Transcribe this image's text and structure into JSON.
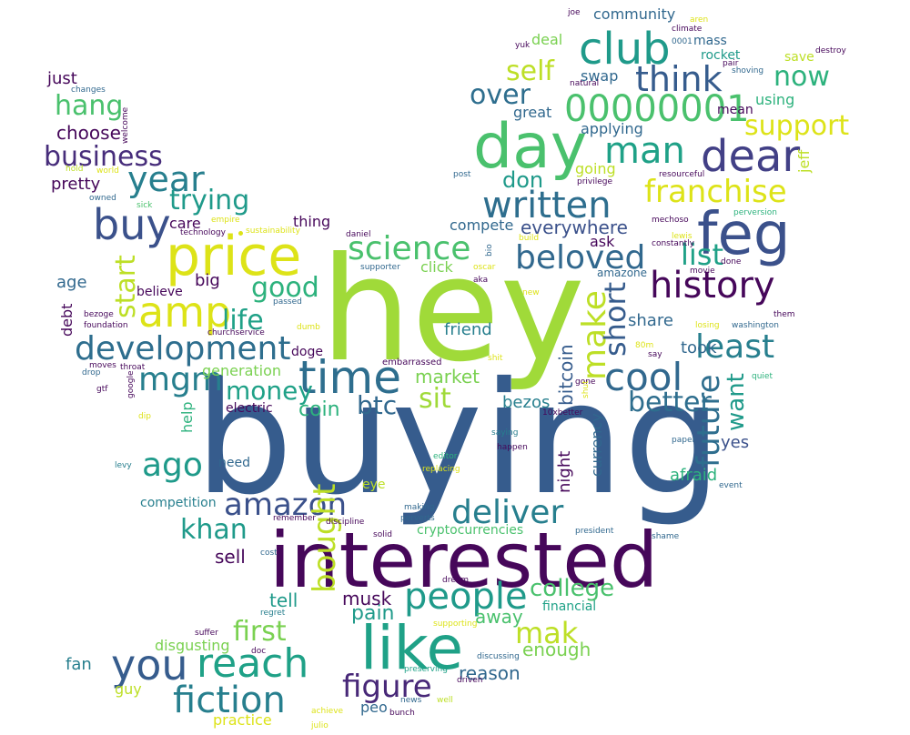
{
  "words": [
    {
      "text": "hey",
      "color": "#a0da39"
    },
    {
      "text": "buying",
      "color": "#365c8d"
    },
    {
      "text": "interested",
      "color": "#46075a"
    },
    {
      "text": "day",
      "color": "#4ac16d"
    },
    {
      "text": "price",
      "color": "#dde318"
    },
    {
      "text": "feg",
      "color": "#3b518b"
    },
    {
      "text": "like",
      "color": "#1fa187"
    },
    {
      "text": "time",
      "color": "#2e6e8e"
    },
    {
      "text": "club",
      "color": "#1f9a8a"
    },
    {
      "text": "dear",
      "color": "#424086"
    },
    {
      "text": "amp",
      "color": "#dde318"
    },
    {
      "text": "buy",
      "color": "#3b518b"
    },
    {
      "text": "development",
      "color": "#2e6e8e"
    },
    {
      "text": "history",
      "color": "#46075a"
    },
    {
      "text": "reach",
      "color": "#1fa187"
    },
    {
      "text": "you",
      "color": "#365c8d"
    },
    {
      "text": "00000001",
      "color": "#4ac16d"
    },
    {
      "text": "written",
      "color": "#2e6e8e"
    },
    {
      "text": "fiction",
      "color": "#277f8e"
    },
    {
      "text": "amazon",
      "color": "#3b518b"
    },
    {
      "text": "people",
      "color": "#1f9a8a"
    },
    {
      "text": "franchise",
      "color": "#dde318"
    },
    {
      "text": "deliver",
      "color": "#277f8e"
    },
    {
      "text": "cool",
      "color": "#31688e"
    },
    {
      "text": "beloved",
      "color": "#31688e"
    },
    {
      "text": "man",
      "color": "#1fa187"
    },
    {
      "text": "think",
      "color": "#365c8d"
    },
    {
      "text": "science",
      "color": "#4ac16d"
    },
    {
      "text": "mgm",
      "color": "#277f8e"
    },
    {
      "text": "least",
      "color": "#277f8e"
    },
    {
      "text": "year",
      "color": "#277f8e"
    },
    {
      "text": "ago",
      "color": "#1f9a8a"
    },
    {
      "text": "figure",
      "color": "#482878"
    },
    {
      "text": "business",
      "color": "#472d7b"
    },
    {
      "text": "mak",
      "color": "#bddf26"
    },
    {
      "text": "khan",
      "color": "#1f9a8a"
    },
    {
      "text": "support",
      "color": "#dde318"
    },
    {
      "text": "now",
      "color": "#2db27d"
    },
    {
      "text": "better",
      "color": "#2e6e8e"
    },
    {
      "text": "life",
      "color": "#1fa187"
    },
    {
      "text": "over",
      "color": "#2e6e8e"
    },
    {
      "text": "trying",
      "color": "#1f9a8a"
    },
    {
      "text": "self",
      "color": "#bddf26"
    },
    {
      "text": "good",
      "color": "#2db27d"
    },
    {
      "text": "hang",
      "color": "#4ac16d"
    },
    {
      "text": "first",
      "color": "#7ad151"
    },
    {
      "text": "money",
      "color": "#1fa187"
    },
    {
      "text": "list",
      "color": "#1fa187"
    },
    {
      "text": "college",
      "color": "#4ac16d"
    },
    {
      "text": "sit",
      "color": "#a0da39"
    },
    {
      "text": "btc",
      "color": "#31688e"
    },
    {
      "text": "don",
      "color": "#1f9a8a"
    },
    {
      "text": "market",
      "color": "#7ad151"
    },
    {
      "text": "coin",
      "color": "#2db27d"
    },
    {
      "text": "pain",
      "color": "#1f9a8a"
    },
    {
      "text": "enough",
      "color": "#7ad151"
    },
    {
      "text": "reason",
      "color": "#31688e"
    },
    {
      "text": "tell",
      "color": "#1f9a8a"
    },
    {
      "text": "musk",
      "color": "#46075a"
    },
    {
      "text": "away",
      "color": "#4ac16d"
    },
    {
      "text": "sell",
      "color": "#46075a"
    },
    {
      "text": "choose",
      "color": "#46075a"
    },
    {
      "text": "pretty",
      "color": "#46075a"
    },
    {
      "text": "just",
      "color": "#46075a"
    },
    {
      "text": "age",
      "color": "#31688e"
    },
    {
      "text": "big",
      "color": "#46075a"
    },
    {
      "text": "believe",
      "color": "#46075a"
    },
    {
      "text": "care",
      "color": "#46075a"
    },
    {
      "text": "thing",
      "color": "#46075a"
    },
    {
      "text": "compete",
      "color": "#31688e"
    },
    {
      "text": "everywhere",
      "color": "#3b518b"
    },
    {
      "text": "ask",
      "color": "#46075a"
    },
    {
      "text": "friend",
      "color": "#277f8e"
    },
    {
      "text": "share",
      "color": "#31688e"
    },
    {
      "text": "took",
      "color": "#31688e"
    },
    {
      "text": "yes",
      "color": "#3b518b"
    },
    {
      "text": "afraid",
      "color": "#2db27d"
    },
    {
      "text": "generation",
      "color": "#7ad151"
    },
    {
      "text": "electric",
      "color": "#46075a"
    },
    {
      "text": "need",
      "color": "#31688e"
    },
    {
      "text": "eye",
      "color": "#bddf26"
    },
    {
      "text": "competition",
      "color": "#277f8e"
    },
    {
      "text": "bezos",
      "color": "#277f8e"
    },
    {
      "text": "doge",
      "color": "#46075a"
    },
    {
      "text": "click",
      "color": "#7ad151"
    },
    {
      "text": "cryptocurrencies",
      "color": "#4ac16d"
    },
    {
      "text": "financial",
      "color": "#1fa187"
    },
    {
      "text": "swap",
      "color": "#31688e"
    },
    {
      "text": "deal",
      "color": "#7ad151"
    },
    {
      "text": "great",
      "color": "#31688e"
    },
    {
      "text": "applying",
      "color": "#31688e"
    },
    {
      "text": "going",
      "color": "#bddf26"
    },
    {
      "text": "using",
      "color": "#2db27d"
    },
    {
      "text": "save",
      "color": "#bddf26"
    },
    {
      "text": "mean",
      "color": "#46075a"
    },
    {
      "text": "rocket",
      "color": "#1f9a8a"
    },
    {
      "text": "mass",
      "color": "#31688e"
    },
    {
      "text": "community",
      "color": "#31688e"
    },
    {
      "text": "fan",
      "color": "#277f8e"
    },
    {
      "text": "guy",
      "color": "#bddf26"
    },
    {
      "text": "disgusting",
      "color": "#7ad151"
    },
    {
      "text": "practice",
      "color": "#dde318"
    },
    {
      "text": "peo",
      "color": "#31688e"
    },
    {
      "text": "amazone",
      "color": "#31688e"
    },
    {
      "text": "start",
      "color": "#bddf26"
    },
    {
      "text": "bought",
      "color": "#bddf26"
    },
    {
      "text": "make",
      "color": "#bddf26"
    },
    {
      "text": "short",
      "color": "#365c8d"
    },
    {
      "text": "future",
      "color": "#2e6e8e"
    },
    {
      "text": "want",
      "color": "#1f9a8a"
    },
    {
      "text": "bitcoin",
      "color": "#365c8d"
    },
    {
      "text": "currency",
      "color": "#31688e"
    },
    {
      "text": "night",
      "color": "#46075a"
    },
    {
      "text": "help",
      "color": "#2db27d"
    },
    {
      "text": "debt",
      "color": "#46075a"
    },
    {
      "text": "jeff",
      "color": "#bddf26"
    },
    {
      "text": "changes",
      "color": "#31688e"
    },
    {
      "text": "welcome",
      "color": "#46075a"
    },
    {
      "text": "hold",
      "color": "#bddf26"
    },
    {
      "text": "world",
      "color": "#dde318"
    },
    {
      "text": "owned",
      "color": "#31688e"
    },
    {
      "text": "sick",
      "color": "#4ac16d"
    },
    {
      "text": "empire",
      "color": "#dde318"
    },
    {
      "text": "technology",
      "color": "#46075a"
    },
    {
      "text": "sustainability",
      "color": "#dde318"
    },
    {
      "text": "daniel",
      "color": "#46075a"
    },
    {
      "text": "supporter",
      "color": "#31688e"
    },
    {
      "text": "oscar",
      "color": "#dde318"
    },
    {
      "text": "bio",
      "color": "#31688e"
    },
    {
      "text": "aka",
      "color": "#46075a"
    },
    {
      "text": "passed",
      "color": "#31688e"
    },
    {
      "text": "bezoge",
      "color": "#46075a"
    },
    {
      "text": "foundation",
      "color": "#46075a"
    },
    {
      "text": "churchservice",
      "color": "#46075a"
    },
    {
      "text": "dumb",
      "color": "#dde318"
    },
    {
      "text": "moves",
      "color": "#46075a"
    },
    {
      "text": "throat",
      "color": "#46075a"
    },
    {
      "text": "drop",
      "color": "#31688e"
    },
    {
      "text": "gtf",
      "color": "#46075a"
    },
    {
      "text": "google",
      "color": "#46075a"
    },
    {
      "text": "dip",
      "color": "#dde318"
    },
    {
      "text": "embarrassed",
      "color": "#46075a"
    },
    {
      "text": "shit",
      "color": "#dde318"
    },
    {
      "text": "gone",
      "color": "#46075a"
    },
    {
      "text": "shut",
      "color": "#dde318"
    },
    {
      "text": "10xbetter",
      "color": "#46075a"
    },
    {
      "text": "saying",
      "color": "#277f8e"
    },
    {
      "text": "happen",
      "color": "#46075a"
    },
    {
      "text": "editor",
      "color": "#2db27d"
    },
    {
      "text": "replacing",
      "color": "#dde318"
    },
    {
      "text": "levy",
      "color": "#277f8e"
    },
    {
      "text": "making",
      "color": "#31688e"
    },
    {
      "text": "perverts",
      "color": "#31688e"
    },
    {
      "text": "remember",
      "color": "#46075a"
    },
    {
      "text": "discipline",
      "color": "#46075a"
    },
    {
      "text": "solid",
      "color": "#46075a"
    },
    {
      "text": "president",
      "color": "#31688e"
    },
    {
      "text": "shame",
      "color": "#31688e"
    },
    {
      "text": "cost",
      "color": "#31688e"
    },
    {
      "text": "dream",
      "color": "#46075a"
    },
    {
      "text": "regret",
      "color": "#277f8e"
    },
    {
      "text": "supporting",
      "color": "#dde318"
    },
    {
      "text": "suffer",
      "color": "#46075a"
    },
    {
      "text": "doc",
      "color": "#46075a"
    },
    {
      "text": "discussing",
      "color": "#31688e"
    },
    {
      "text": "preserving",
      "color": "#1fa187"
    },
    {
      "text": "driven",
      "color": "#46075a"
    },
    {
      "text": "news",
      "color": "#31688e"
    },
    {
      "text": "well",
      "color": "#bddf26"
    },
    {
      "text": "achieve",
      "color": "#dde318"
    },
    {
      "text": "bunch",
      "color": "#46075a"
    },
    {
      "text": "julio",
      "color": "#dde318"
    },
    {
      "text": "joe",
      "color": "#46075a"
    },
    {
      "text": "aren",
      "color": "#dde318"
    },
    {
      "text": "climate",
      "color": "#46075a"
    },
    {
      "text": "yuk",
      "color": "#46075a"
    },
    {
      "text": "0001",
      "color": "#31688e"
    },
    {
      "text": "destroy",
      "color": "#46075a"
    },
    {
      "text": "pair",
      "color": "#46075a"
    },
    {
      "text": "shoving",
      "color": "#31688e"
    },
    {
      "text": "natural",
      "color": "#46075a"
    },
    {
      "text": "post",
      "color": "#31688e"
    },
    {
      "text": "privilege",
      "color": "#46075a"
    },
    {
      "text": "resourceful",
      "color": "#46075a"
    },
    {
      "text": "perversion",
      "color": "#2db27d"
    },
    {
      "text": "mechoso",
      "color": "#46075a"
    },
    {
      "text": "lewis",
      "color": "#dde318"
    },
    {
      "text": "constantly",
      "color": "#46075a"
    },
    {
      "text": "build",
      "color": "#dde318"
    },
    {
      "text": "movie",
      "color": "#46075a"
    },
    {
      "text": "done",
      "color": "#46075a"
    },
    {
      "text": "them",
      "color": "#46075a"
    },
    {
      "text": "losing",
      "color": "#dde318"
    },
    {
      "text": "washington",
      "color": "#31688e"
    },
    {
      "text": "new",
      "color": "#dde318"
    },
    {
      "text": "80m",
      "color": "#dde318"
    },
    {
      "text": "say",
      "color": "#46075a"
    },
    {
      "text": "quiet",
      "color": "#2db27d"
    },
    {
      "text": "paper",
      "color": "#31688e"
    },
    {
      "text": "event",
      "color": "#31688e"
    }
  ]
}
